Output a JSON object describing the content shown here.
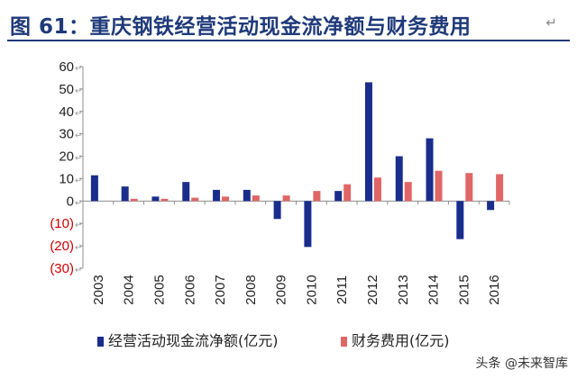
{
  "title": "图 61：重庆钢铁经营活动现金流净额与财务费用",
  "title_mark": "↵",
  "watermark": "头条 @未来智库",
  "colors": {
    "title": "#1f3a7a",
    "series_1": "#1a2d8c",
    "series_2": "#e06666",
    "negative_label": "#cc0000",
    "axis": "#8c8c8c",
    "text": "#222222"
  },
  "chart_data": {
    "type": "bar",
    "categories": [
      "2003",
      "2004",
      "2005",
      "2006",
      "2007",
      "2008",
      "2009",
      "2010",
      "2011",
      "2012",
      "2013",
      "2014",
      "2015",
      "2016"
    ],
    "series": [
      {
        "name": "经营活动现金流净额(亿元)",
        "values": [
          11.5,
          6.5,
          2.0,
          8.5,
          5.0,
          5.0,
          -8.0,
          -20.5,
          4.5,
          53.0,
          20.0,
          28.0,
          -17.0,
          -4.0
        ]
      },
      {
        "name": "财务费用(亿元)",
        "values": [
          0,
          1.0,
          1.0,
          1.5,
          2.0,
          2.5,
          2.5,
          4.5,
          7.5,
          10.5,
          8.5,
          13.5,
          12.5,
          12.0
        ]
      }
    ],
    "ylim": [
      -30,
      60
    ],
    "yticks": [
      60,
      50,
      40,
      30,
      20,
      10,
      0,
      -10,
      -20,
      -30
    ],
    "ytick_labels": [
      "60",
      "50",
      "40",
      "30",
      "20",
      "10",
      "0",
      "(10)",
      "(20)",
      "(30)"
    ],
    "tick_mark": "↵",
    "legend_position": "bottom",
    "grid": false
  }
}
